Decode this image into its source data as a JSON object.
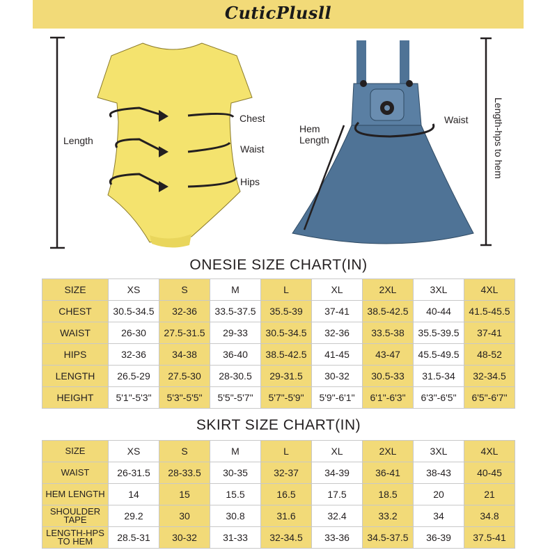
{
  "brand": {
    "logo_text": "CuticPlusll",
    "banner_color": "#f2da78"
  },
  "colors": {
    "highlight": "#f2da78",
    "onesie": "#f4e36e",
    "dress": "#4f7396"
  },
  "onesie_diagram": {
    "labels": {
      "length": "Length",
      "chest": "Chest",
      "waist": "Waist",
      "hips": "Hips"
    }
  },
  "dress_diagram": {
    "labels": {
      "hem_length": "Hem\nLength",
      "waist": "Waist",
      "length_hps": "Length-hps to hem"
    }
  },
  "onesie_chart": {
    "title": "ONESIE SIZE CHART(IN)",
    "headers": [
      "SIZE",
      "XS",
      "S",
      "M",
      "L",
      "XL",
      "2XL",
      "3XL",
      "4XL"
    ],
    "rows": [
      [
        "CHEST",
        "30.5-34.5",
        "32-36",
        "33.5-37.5",
        "35.5-39",
        "37-41",
        "38.5-42.5",
        "40-44",
        "41.5-45.5"
      ],
      [
        "WAIST",
        "26-30",
        "27.5-31.5",
        "29-33",
        "30.5-34.5",
        "32-36",
        "33.5-38",
        "35.5-39.5",
        "37-41"
      ],
      [
        "HIPS",
        "32-36",
        "34-38",
        "36-40",
        "38.5-42.5",
        "41-45",
        "43-47",
        "45.5-49.5",
        "48-52"
      ],
      [
        "LENGTH",
        "26.5-29",
        "27.5-30",
        "28-30.5",
        "29-31.5",
        "30-32",
        "30.5-33",
        "31.5-34",
        "32-34.5"
      ],
      [
        "HEIGHT",
        "5'1\"-5'3\"",
        "5'3\"-5'5\"",
        "5'5\"-5'7\"",
        "5'7\"-5'9\"",
        "5'9\"-6'1\"",
        "6'1\"-6'3\"",
        "6'3\"-6'5\"",
        "6'5\"-6'7\""
      ]
    ]
  },
  "skirt_chart": {
    "title": "SKIRT SIZE CHART(IN)",
    "headers": [
      "SIZE",
      "XS",
      "S",
      "M",
      "L",
      "XL",
      "2XL",
      "3XL",
      "4XL"
    ],
    "rows": [
      [
        "WAIST",
        "26-31.5",
        "28-33.5",
        "30-35",
        "32-37",
        "34-39",
        "36-41",
        "38-43",
        "40-45"
      ],
      [
        "HEM LENGTH",
        "14",
        "15",
        "15.5",
        "16.5",
        "17.5",
        "18.5",
        "20",
        "21"
      ],
      [
        "SHOULDER TAPE",
        "29.2",
        "30",
        "30.8",
        "31.6",
        "32.4",
        "33.2",
        "34",
        "34.8"
      ],
      [
        "LENGTH-HPS TO HEM",
        "28.5-31",
        "30-32",
        "31-33",
        "32-34.5",
        "33-36",
        "34.5-37.5",
        "36-39",
        "37.5-41"
      ]
    ]
  }
}
